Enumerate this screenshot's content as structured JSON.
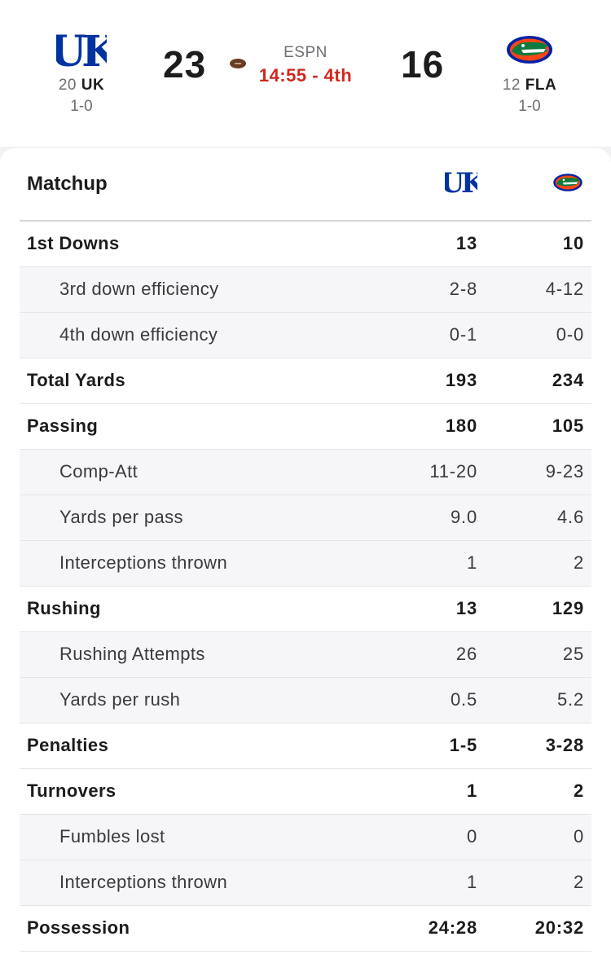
{
  "game": {
    "away": {
      "rank": "20",
      "abbr": "UK",
      "record": "1-0",
      "score": "23",
      "logo_icon": "kentucky-uk-logo-icon",
      "color": "#0033a0"
    },
    "home": {
      "rank": "12",
      "abbr": "FLA",
      "record": "1-0",
      "score": "16",
      "logo_icon": "florida-gator-logo-icon",
      "color": "#fa4616"
    },
    "network": "ESPN",
    "clock": "14:55 - 4th",
    "clock_color": "#d0281e",
    "possession_icon": "football-icon"
  },
  "matchup": {
    "title": "Matchup",
    "rows": [
      {
        "label": "1st Downs",
        "away": "13",
        "home": "10",
        "type": "main"
      },
      {
        "label": "3rd down efficiency",
        "away": "2-8",
        "home": "4-12",
        "type": "sub"
      },
      {
        "label": "4th down efficiency",
        "away": "0-1",
        "home": "0-0",
        "type": "sub"
      },
      {
        "label": "Total Yards",
        "away": "193",
        "home": "234",
        "type": "main"
      },
      {
        "label": "Passing",
        "away": "180",
        "home": "105",
        "type": "main"
      },
      {
        "label": "Comp-Att",
        "away": "11-20",
        "home": "9-23",
        "type": "sub"
      },
      {
        "label": "Yards per pass",
        "away": "9.0",
        "home": "4.6",
        "type": "sub"
      },
      {
        "label": "Interceptions thrown",
        "away": "1",
        "home": "2",
        "type": "sub"
      },
      {
        "label": "Rushing",
        "away": "13",
        "home": "129",
        "type": "main"
      },
      {
        "label": "Rushing Attempts",
        "away": "26",
        "home": "25",
        "type": "sub"
      },
      {
        "label": "Yards per rush",
        "away": "0.5",
        "home": "5.2",
        "type": "sub"
      },
      {
        "label": "Penalties",
        "away": "1-5",
        "home": "3-28",
        "type": "main"
      },
      {
        "label": "Turnovers",
        "away": "1",
        "home": "2",
        "type": "main"
      },
      {
        "label": "Fumbles lost",
        "away": "0",
        "home": "0",
        "type": "sub"
      },
      {
        "label": "Interceptions thrown",
        "away": "1",
        "home": "2",
        "type": "sub"
      },
      {
        "label": "Possession",
        "away": "24:28",
        "home": "20:32",
        "type": "main"
      }
    ]
  }
}
